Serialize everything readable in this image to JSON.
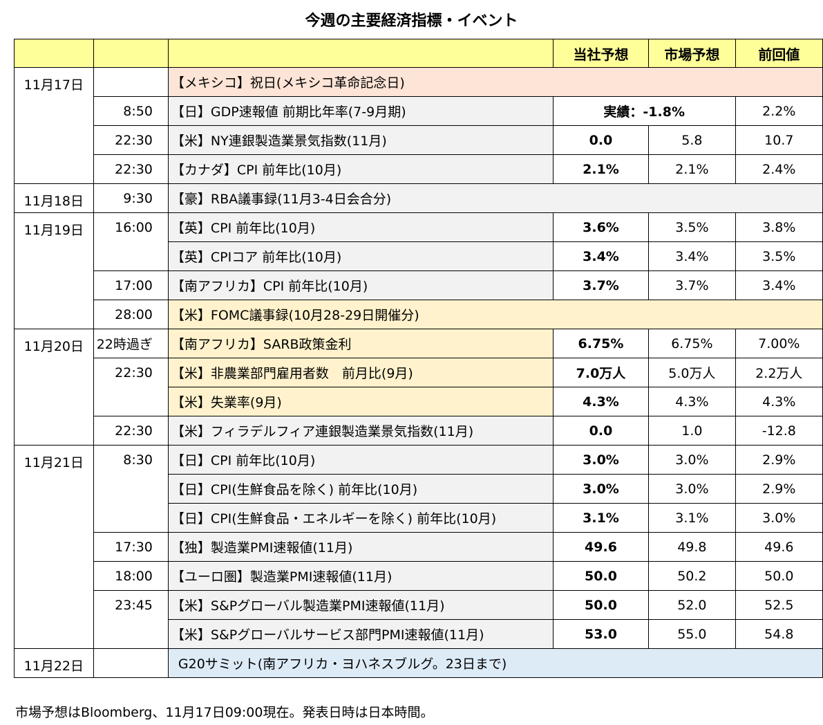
{
  "title": "今週の主要経済指標・イベント",
  "table": {
    "header": [
      "当社予想",
      "市場予想",
      "前回値"
    ],
    "rows": [
      {
        "date": "11月17日",
        "event": "【メキシコ】祝日(メキシコ革命記念日)",
        "color": "#fce4d6"
      },
      {
        "time": "8:50",
        "event": "【日】GDP速報値 前期比年率(7-9月期)",
        "actual": "実績：-1.8%",
        "prev": "2.2%"
      },
      {
        "time": "22:30",
        "event": "【米】NY連銀製造業景気指数(11月)",
        "ours": "0.0",
        "market": "5.8",
        "prev": "10.7"
      },
      {
        "time": "22:30",
        "event": "【カナダ】CPI 前年比(10月)",
        "ours": "2.1%",
        "market": "2.1%",
        "prev": "2.4%"
      },
      {
        "date": "11月18日",
        "time": "9:30",
        "event": "【豪】RBA議事録(11月3-4日会合分)",
        "color": "#f2f2f2"
      },
      {
        "date": "11月19日",
        "time": "16:00",
        "event": "【英】CPI 前年比(10月)",
        "ours": "3.6%",
        "market": "3.5%",
        "prev": "3.8%"
      },
      {
        "event": "【英】CPIコア 前年比(10月)",
        "ours": "3.4%",
        "market": "3.4%",
        "prev": "3.5%"
      },
      {
        "time": "17:00",
        "event": "【南アフリカ】CPI 前年比(10月)",
        "ours": "3.7%",
        "market": "3.7%",
        "prev": "3.4%"
      },
      {
        "time": "28:00",
        "event": "【米】FOMC議事録(10月28-29日開催分)",
        "color": "#fff2cc"
      },
      {
        "date": "11月20日",
        "time": "22時過ぎ",
        "event": "【南アフリカ】SARB政策金利",
        "ours": "6.75%",
        "market": "6.75%",
        "prev": "7.00%",
        "color": "#fff2cc"
      },
      {
        "time": "22:30",
        "event": "【米】非農業部門雇用者数　前月比(9月)",
        "ours": "7.0万人",
        "market": "5.0万人",
        "prev": "2.2万人",
        "color": "#fff2cc"
      },
      {
        "event": "【米】失業率(9月)",
        "ours": "4.3%",
        "market": "4.3%",
        "prev": "4.3%",
        "color": "#fff2cc"
      },
      {
        "time": "22:30",
        "event": "【米】フィラデルフィア連銀製造業景気指数(11月)",
        "ours": "0.0",
        "market": "1.0",
        "prev": "-12.8"
      },
      {
        "date": "11月21日",
        "time": "8:30",
        "event": "【日】CPI 前年比(10月)",
        "ours": "3.0%",
        "market": "3.0%",
        "prev": "2.9%"
      },
      {
        "event": "【日】CPI(生鮮食品を除く) 前年比(10月)",
        "ours": "3.0%",
        "market": "3.0%",
        "prev": "2.9%"
      },
      {
        "event": "【日】CPI(生鮮食品・エネルギーを除く) 前年比(10月)",
        "ours": "3.1%",
        "market": "3.1%",
        "prev": "3.0%"
      },
      {
        "time": "17:30",
        "event": "【独】製造業PMI速報値(11月)",
        "ours": "49.6",
        "market": "49.8",
        "prev": "49.6"
      },
      {
        "time": "18:00",
        "event": "【ユーロ圏】製造業PMI速報値(11月)",
        "ours": "50.0",
        "market": "50.2",
        "prev": "50.0"
      },
      {
        "time": "23:45",
        "event": "【米】S&Pグローバル製造業PMI速報値(11月)",
        "ours": "50.0",
        "market": "52.0",
        "prev": "52.5"
      },
      {
        "event": "【米】S&Pグローバルサービス部門PMI速報値(11月)",
        "ours": "53.0",
        "market": "55.0",
        "prev": "54.8"
      },
      {
        "date": "11月22日",
        "event": "G20サミット(南アフリカ・ヨハネスブルグ。23日まで)",
        "color": "#ddebf7"
      }
    ]
  },
  "footnote": "市場予想はBloomberg、11月17日09:00現在。発表日時は日本時間。"
}
